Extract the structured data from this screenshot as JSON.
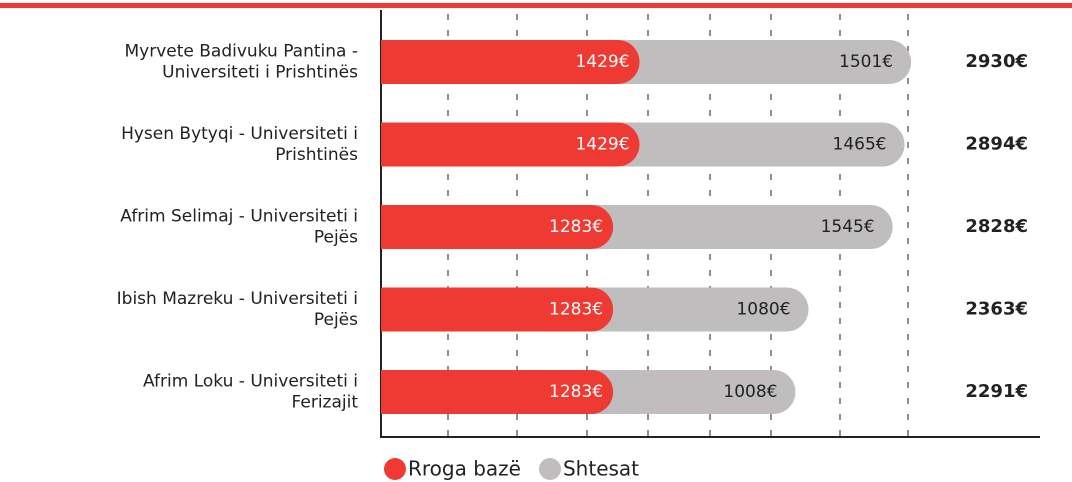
{
  "chart_data": {
    "type": "stacked-barh",
    "categories": [
      [
        "Myrvete Badivuku Pantina -",
        "Universiteti i Prishtinës"
      ],
      [
        "Hysen Bytyqi - Universiteti i",
        "Prishtinës"
      ],
      [
        "Afrim Selimaj - Universiteti i",
        "Pejës"
      ],
      [
        "Ibish Mazreku - Universiteti i",
        "Pejës"
      ],
      [
        "Afrim Loku - Universiteti i",
        "Ferizajit"
      ]
    ],
    "series": [
      {
        "name": "Rroga bazë",
        "color": "#ee3a32",
        "values": [
          1429,
          1429,
          1283,
          1283,
          1283
        ],
        "value_labels": [
          "1429€",
          "1429€",
          "1283€",
          "1283€",
          "1283€"
        ]
      },
      {
        "name": "Shtesat",
        "color": "#bfbdbd",
        "values": [
          1501,
          1465,
          1545,
          1080,
          1008
        ],
        "value_labels": [
          "1501€",
          "1465€",
          "1545€",
          "1080€",
          "1008€"
        ]
      }
    ],
    "totals": [
      2930,
      2894,
      2828,
      2363,
      2291
    ],
    "total_labels": [
      "2930€",
      "2894€",
      "2828€",
      "2363€",
      "2291€"
    ],
    "xlim": [
      0,
      3200
    ]
  }
}
